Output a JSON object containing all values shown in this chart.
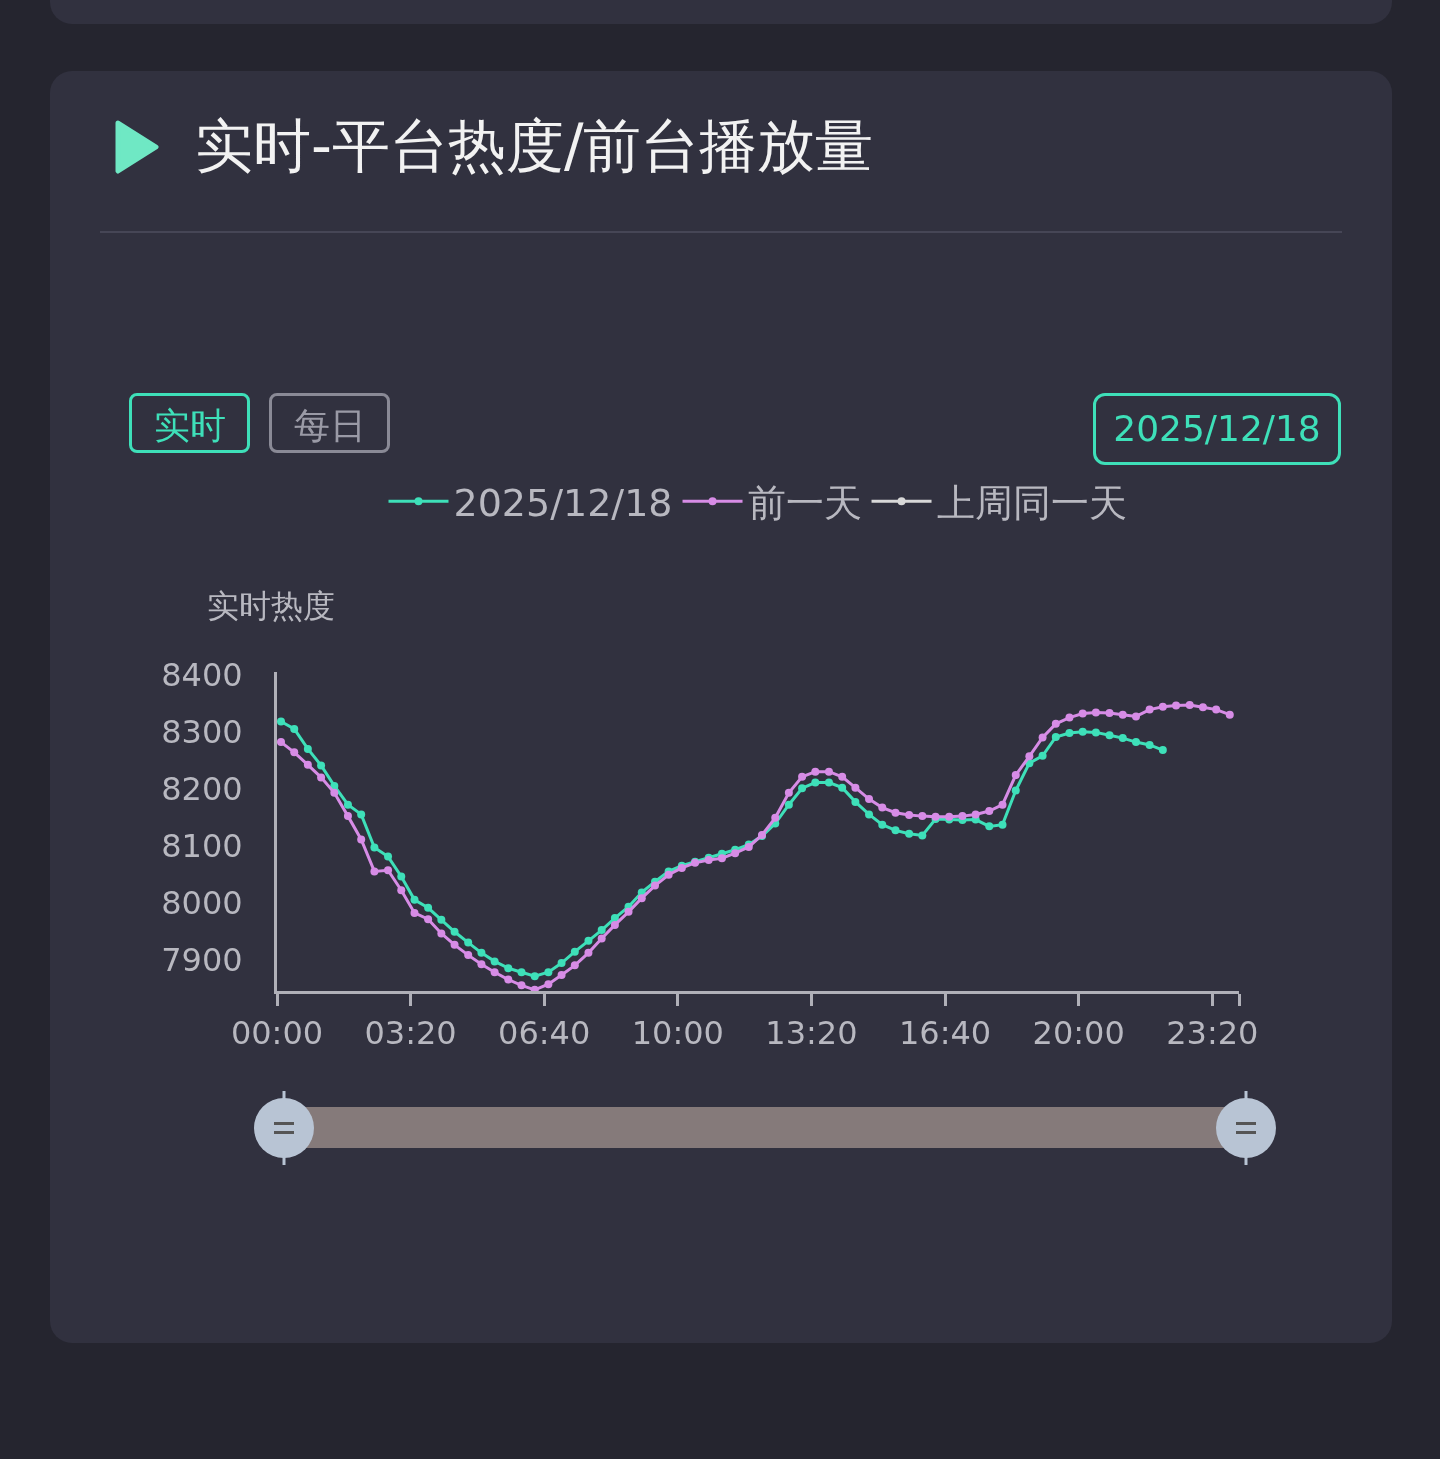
{
  "chart_data": {
    "type": "line",
    "title": "实时-平台热度/前台播放量",
    "ylabel": "实时热度",
    "annotations": [
      "实时",
      "每日",
      "2025/12/18"
    ],
    "x": [
      0.1,
      0.43,
      0.77,
      1.1,
      1.43,
      1.77,
      2.1,
      2.43,
      2.77,
      3.1,
      3.43,
      3.77,
      4.1,
      4.43,
      4.77,
      5.1,
      5.43,
      5.77,
      6.1,
      6.43,
      6.77,
      7.1,
      7.43,
      7.77,
      8.1,
      8.43,
      8.77,
      9.1,
      9.43,
      9.77,
      10.1,
      10.43,
      10.77,
      11.1,
      11.43,
      11.77,
      12.1,
      12.43,
      12.77,
      13.1,
      13.43,
      13.77,
      14.1,
      14.43,
      14.77,
      15.1,
      15.43,
      15.77,
      16.1,
      16.43,
      16.77,
      17.1,
      17.43,
      17.77,
      18.1,
      18.43,
      18.77,
      19.1,
      19.43,
      19.77,
      20.1,
      20.43,
      20.77,
      21.1,
      21.43,
      21.77,
      22.1,
      22.43,
      22.77,
      23.1,
      23.43,
      23.77
    ],
    "series": [
      {
        "name": "2025/12/18",
        "color": "#3ee0b9",
        "values": [
          8318,
          8305,
          8270,
          8241,
          8205,
          8172,
          8155,
          8097,
          8081,
          8046,
          8005,
          7991,
          7970,
          7949,
          7930,
          7912,
          7897,
          7885,
          7878,
          7871,
          7878,
          7894,
          7914,
          7933,
          7952,
          7973,
          7993,
          8018,
          8037,
          8055,
          8065,
          8072,
          8079,
          8086,
          8093,
          8102,
          8117,
          8139,
          8172,
          8201,
          8211,
          8211,
          8202,
          8177,
          8155,
          8137,
          8127,
          8121,
          8118,
          8147,
          8146,
          8145,
          8146,
          8134,
          8137,
          8197,
          8245,
          8258,
          8291,
          8298,
          8300,
          8299,
          8294,
          8289,
          8282,
          8277,
          8268,
          null,
          null,
          null,
          null,
          null
        ]
      },
      {
        "name": "前一天",
        "color": "#d78ce6",
        "values": [
          8282,
          8264,
          8242,
          8220,
          8193,
          8152,
          8111,
          8055,
          8057,
          8022,
          7982,
          7971,
          7946,
          7926,
          7908,
          7892,
          7878,
          7865,
          7855,
          7847,
          7857,
          7873,
          7890,
          7912,
          7937,
          7961,
          7984,
          8008,
          8030,
          8049,
          8061,
          8070,
          8075,
          8078,
          8087,
          8098,
          8119,
          8149,
          8193,
          8221,
          8230,
          8230,
          8221,
          8202,
          8182,
          8167,
          8158,
          8154,
          8152,
          8151,
          8151,
          8152,
          8155,
          8161,
          8172,
          8224,
          8257,
          8290,
          8314,
          8325,
          8332,
          8334,
          8333,
          8330,
          8327,
          8339,
          8344,
          8346,
          8347,
          8343,
          8339,
          8330
        ]
      },
      {
        "name": "上周同一天",
        "color": "#d8d8d8",
        "values": [
          null,
          null,
          null,
          null,
          null,
          null,
          null,
          null,
          null,
          null,
          null,
          null,
          null,
          null,
          null,
          null,
          null,
          null,
          null,
          null,
          null,
          null,
          null,
          null,
          null,
          null,
          null,
          null,
          null,
          null,
          null,
          null,
          null,
          null,
          null,
          null,
          null,
          null,
          null,
          null,
          null,
          null,
          null,
          null,
          null,
          null,
          null,
          null,
          null,
          null,
          null,
          null,
          null,
          null,
          null,
          null,
          null,
          null,
          null,
          null,
          null,
          null,
          null,
          null,
          null,
          null,
          null,
          null,
          null,
          null,
          null,
          null
        ]
      }
    ],
    "xlim": [
      0,
      24
    ],
    "xticks": [
      {
        "value": 0,
        "label": "00:00"
      },
      {
        "value": 3.3333,
        "label": "03:20"
      },
      {
        "value": 6.6667,
        "label": "06:40"
      },
      {
        "value": 10,
        "label": "10:00"
      },
      {
        "value": 13.3333,
        "label": "13:20"
      },
      {
        "value": 16.6667,
        "label": "16:40"
      },
      {
        "value": 20,
        "label": "20:00"
      },
      {
        "value": 23.3333,
        "label": "23:20"
      },
      {
        "value": 24,
        "label": null
      }
    ],
    "ylim": [
      7845,
      8405
    ],
    "yticks": [
      7900,
      8000,
      8100,
      8200,
      8300,
      8400
    ],
    "legend": "top",
    "marker": "circle",
    "line_style": "solid"
  }
}
